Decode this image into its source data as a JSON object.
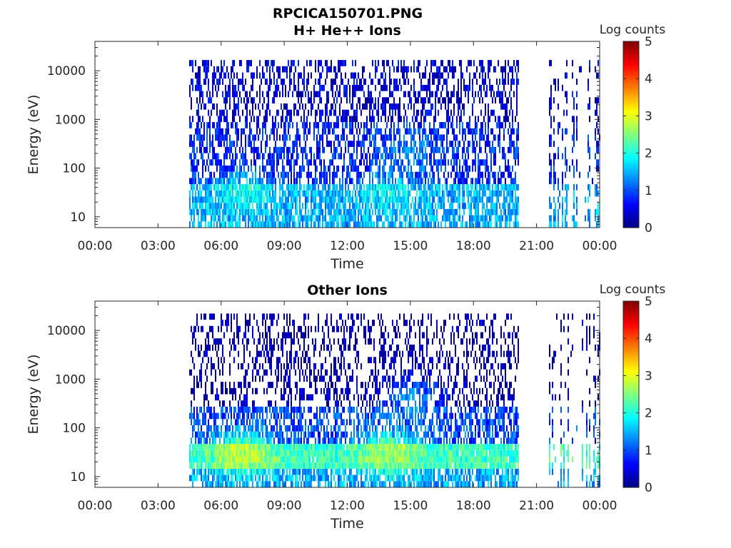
{
  "figure": {
    "title": "RPCICA150701.PNG"
  },
  "chart_data": [
    {
      "type": "heatmap",
      "title": "H+ He++ Ions",
      "xlabel": "Time",
      "ylabel": "Energy (eV)",
      "yscale": "log",
      "xlim": [
        "00:00",
        "24:00"
      ],
      "xticks": [
        "00:00",
        "03:00",
        "06:00",
        "09:00",
        "12:00",
        "15:00",
        "18:00",
        "21:00",
        "00:00"
      ],
      "ylim": [
        6,
        40000
      ],
      "yticks": [
        "10",
        "100",
        "1000",
        "10000"
      ],
      "colorbar": {
        "label": "Log counts",
        "range": [
          0,
          5
        ],
        "ticks": [
          "0",
          "1",
          "2",
          "3",
          "4",
          "5"
        ],
        "colormap": "jet"
      },
      "data_segments": [
        {
          "start": "04:30",
          "end": "20:10",
          "style": "continuous"
        },
        {
          "start": "21:35",
          "end": "24:00",
          "style": "sparse-stripes"
        }
      ],
      "intensity_profile": [
        {
          "energy_range": [
            6,
            45
          ],
          "log_counts": 1.5
        },
        {
          "energy_range": [
            45,
            1000
          ],
          "log_counts": 0.8
        },
        {
          "energy_range": [
            1000,
            16000
          ],
          "log_counts": 0.5
        }
      ],
      "peak_features": [
        {
          "time": "07:00",
          "energy": 30,
          "log_counts": 2.0
        },
        {
          "time": "14:00",
          "energy": 30,
          "log_counts": 1.9
        },
        {
          "time": "15:00",
          "energy": 200,
          "log_counts": 1.3
        }
      ]
    },
    {
      "type": "heatmap",
      "title": "Other Ions",
      "xlabel": "Time",
      "ylabel": "Energy (eV)",
      "yscale": "log",
      "xlim": [
        "00:00",
        "24:00"
      ],
      "xticks": [
        "00:00",
        "03:00",
        "06:00",
        "09:00",
        "12:00",
        "15:00",
        "18:00",
        "21:00",
        "00:00"
      ],
      "ylim": [
        6,
        40000
      ],
      "yticks": [
        "10",
        "100",
        "1000",
        "10000"
      ],
      "colorbar": {
        "label": "Log counts",
        "range": [
          0,
          5
        ],
        "ticks": [
          "0",
          "1",
          "2",
          "3",
          "4",
          "5"
        ],
        "colormap": "jet"
      },
      "data_segments": [
        {
          "start": "04:30",
          "end": "20:10",
          "style": "continuous"
        },
        {
          "start": "21:35",
          "end": "24:00",
          "style": "sparse-stripes"
        }
      ],
      "intensity_profile": [
        {
          "energy_range": [
            6,
            15
          ],
          "log_counts": 1.5
        },
        {
          "energy_range": [
            15,
            50
          ],
          "log_counts": 2.2
        },
        {
          "energy_range": [
            50,
            300
          ],
          "log_counts": 1.0
        },
        {
          "energy_range": [
            300,
            20000
          ],
          "log_counts": 0.3
        }
      ],
      "peak_features": [
        {
          "time": "07:00",
          "energy": 30,
          "log_counts": 2.8
        },
        {
          "time": "14:00",
          "energy": 30,
          "log_counts": 2.7
        },
        {
          "time": "15:00",
          "energy": 400,
          "log_counts": 1.3
        }
      ]
    }
  ]
}
